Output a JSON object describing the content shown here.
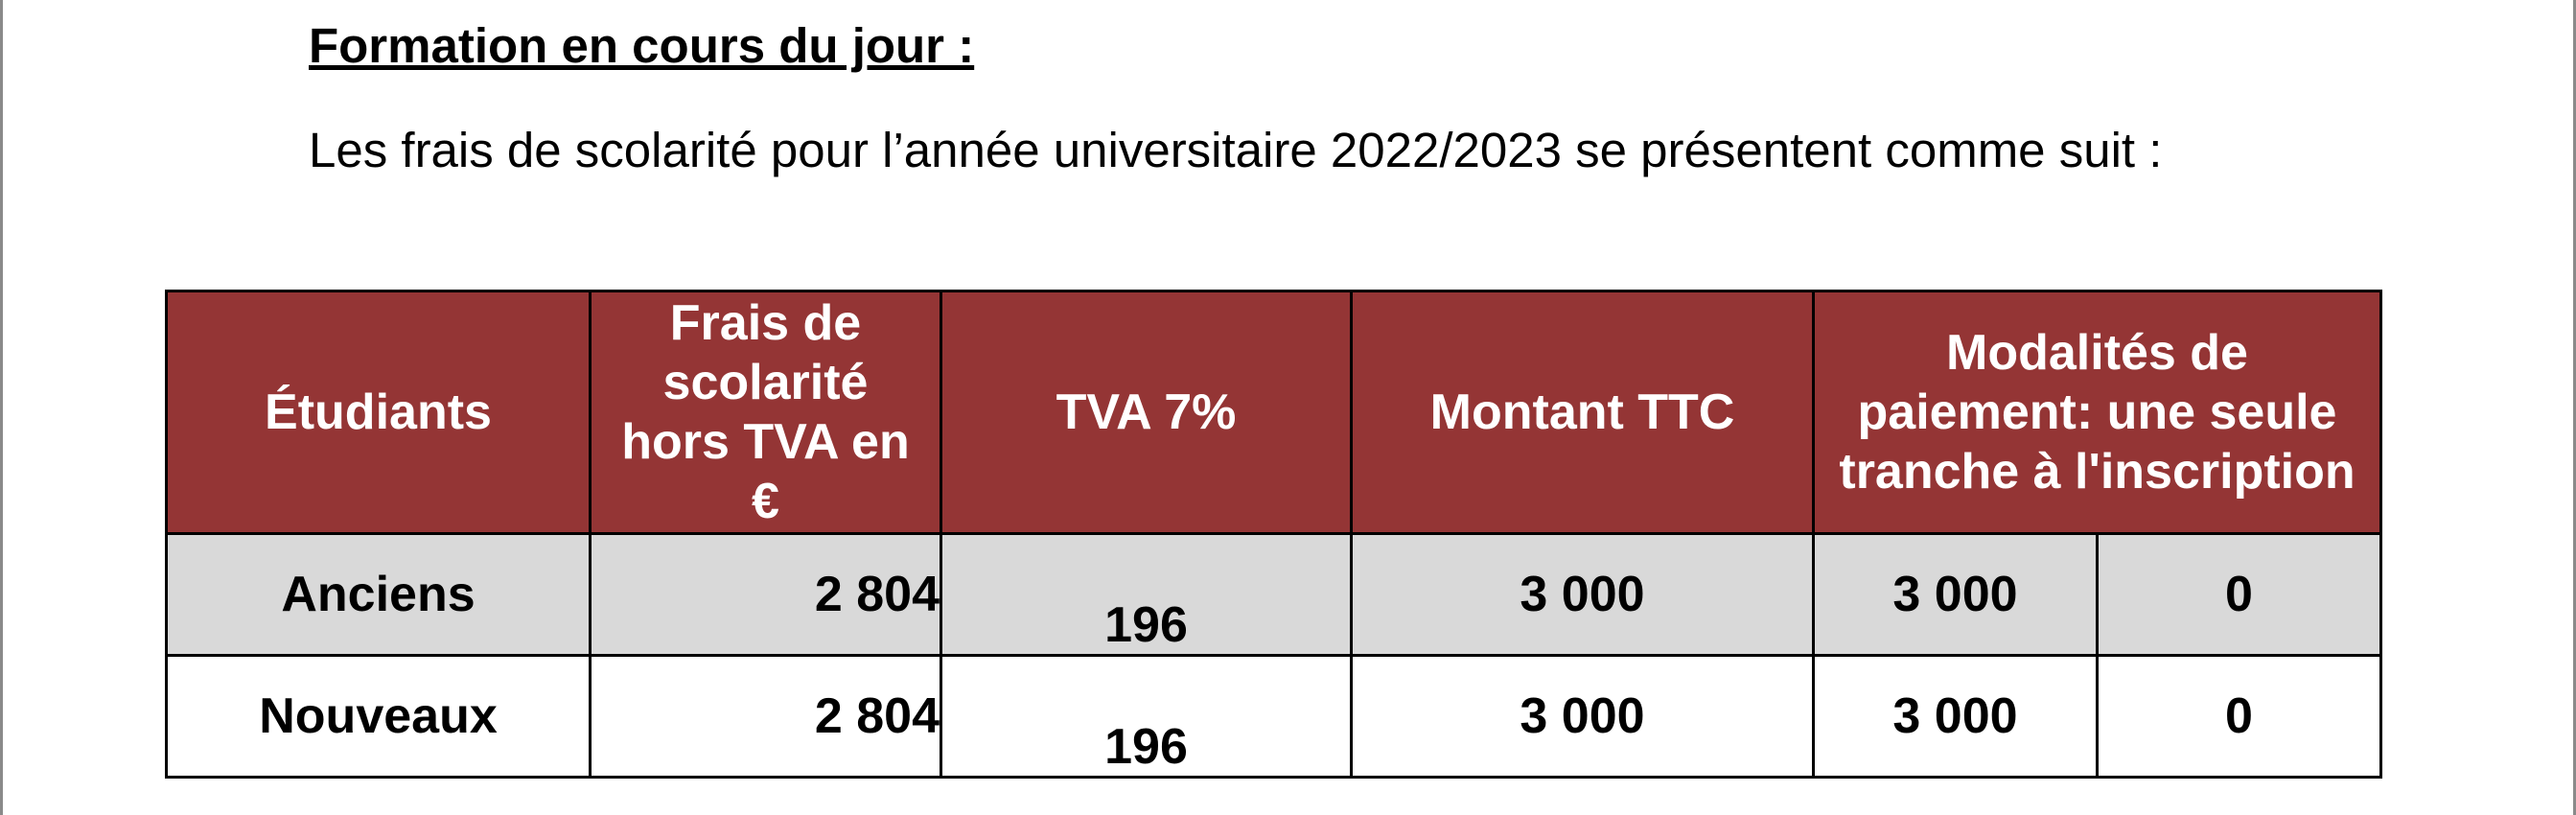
{
  "heading": "Formation en cours du jour :",
  "intro": "Les frais de scolarité pour l’année universitaire 2022/2023 se présentent comme suit :",
  "table": {
    "headers": [
      "Étudiants",
      "Frais de scolarité hors TVA en €",
      "TVA 7%",
      "Montant TTC",
      "Modalités de paiement: une seule tranche à l'inscription"
    ],
    "rows": [
      [
        "Anciens",
        "2 804",
        "196",
        "3 000",
        "3 000",
        "0"
      ],
      [
        "Nouveaux",
        "2 804",
        "196",
        "3 000",
        "3 000",
        "0"
      ]
    ]
  },
  "colors": {
    "header_bg": "#943535",
    "header_text": "#ffffff",
    "row_alt_bg": "#d9d9d9"
  }
}
